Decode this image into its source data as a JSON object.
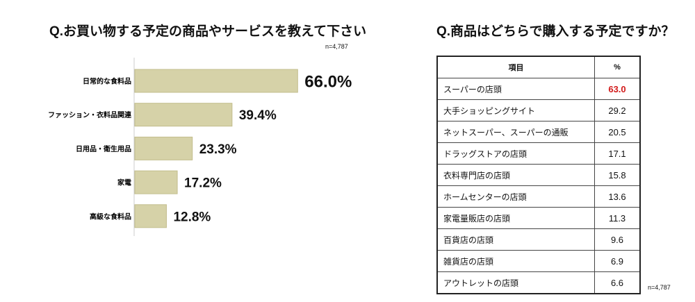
{
  "chart_data": [
    {
      "type": "bar",
      "orientation": "horizontal",
      "title": "Q.お買い物する予定の商品やサービスを教えて下さい",
      "sample_note": "n=4,787",
      "categories": [
        "日常的な食料品",
        "ファッション・衣料品関連",
        "日用品・衛生用品",
        "家電",
        "高級な食料品"
      ],
      "values": [
        66.0,
        39.4,
        23.3,
        17.2,
        12.8
      ],
      "labels": [
        "66.0%",
        "39.4%",
        "23.3%",
        "17.2%",
        "12.8%"
      ],
      "unit": "%",
      "xlim": [
        0,
        100
      ],
      "bar_color": "#d6d2a8",
      "bar_border": "#c2bd8c"
    },
    {
      "type": "table",
      "title": "Q.商品はどちらで購入する予定ですか？",
      "sample_note": "n=4,787",
      "columns": [
        "項目",
        "%"
      ],
      "rows": [
        [
          "スーパーの店頭",
          "63.0"
        ],
        [
          "大手ショッピングサイト",
          "29.2"
        ],
        [
          "ネットスーパー、スーパーの通販",
          "20.5"
        ],
        [
          "ドラッグストアの店頭",
          "17.1"
        ],
        [
          "衣料専門店の店頭",
          "15.8"
        ],
        [
          "ホームセンターの店頭",
          "13.6"
        ],
        [
          "家電量販店の店頭",
          "11.3"
        ],
        [
          "百貨店の店頭",
          "9.6"
        ],
        [
          "雑貨店の店頭",
          "6.9"
        ],
        [
          "アウトレットの店頭",
          "6.6"
        ]
      ],
      "highlight_color": "#d21a1a"
    }
  ]
}
